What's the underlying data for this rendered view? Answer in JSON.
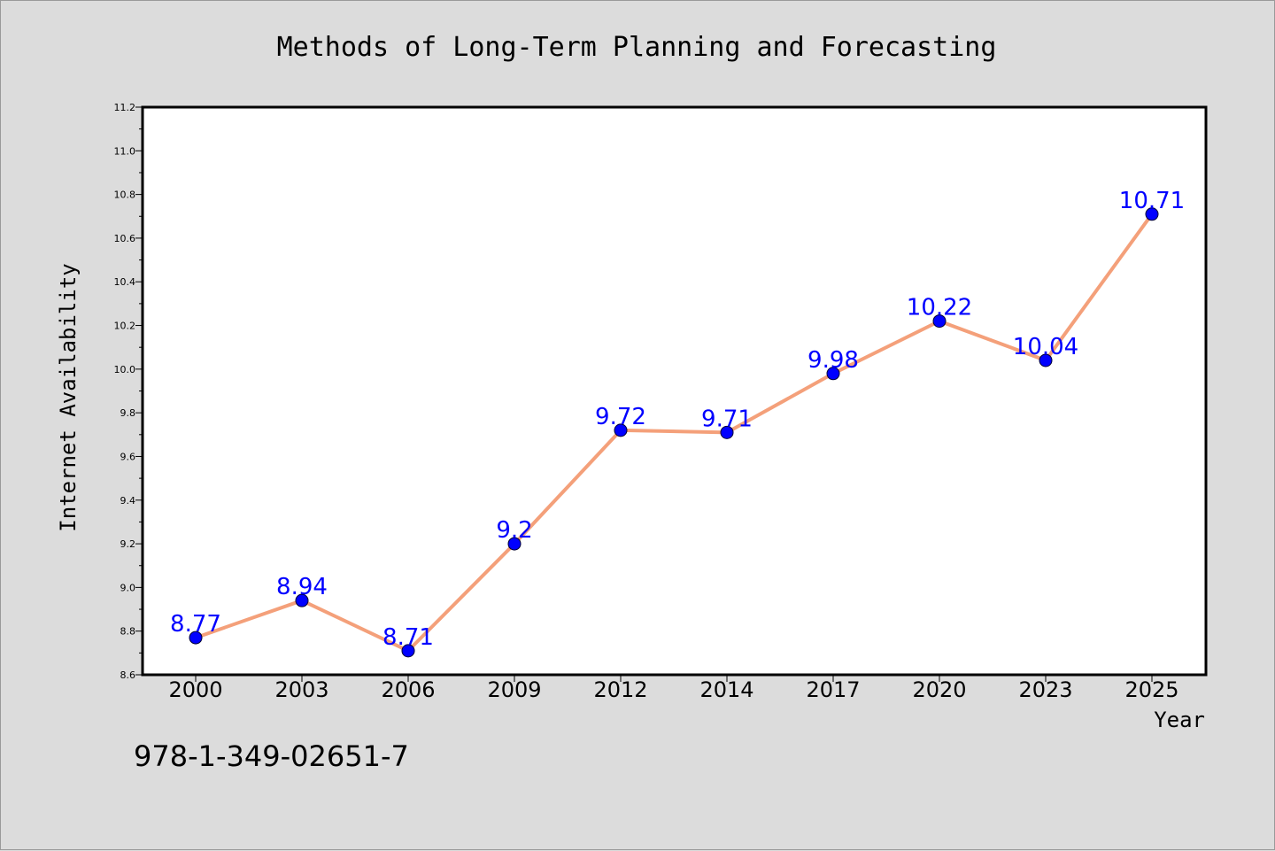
{
  "chart_data": {
    "type": "line",
    "title": "Methods of Long-Term Planning and Forecasting",
    "xlabel": "Year",
    "ylabel": "Internet Availability",
    "categories": [
      "2000",
      "2003",
      "2006",
      "2009",
      "2012",
      "2014",
      "2017",
      "2020",
      "2023",
      "2025"
    ],
    "series": [
      {
        "values": [
          8.77,
          8.94,
          8.71,
          9.2,
          9.72,
          9.71,
          9.98,
          10.22,
          10.04,
          10.71
        ],
        "labels": [
          "8.77",
          "8.94",
          "8.71",
          "9.2",
          "9.72",
          "9.71",
          "9.98",
          "10.22",
          "10.04",
          "10.71"
        ],
        "line_color": "#f4a07a",
        "marker_color": "#0000ff"
      }
    ],
    "ylim": [
      8.6,
      11.2
    ],
    "yticks": [
      "8.6",
      "8.8",
      "9.0",
      "9.2",
      "9.4",
      "9.6",
      "9.8",
      "10.0",
      "10.2",
      "10.4",
      "10.6",
      "10.8",
      "11.0",
      "11.2"
    ],
    "grid": false,
    "legend": "none"
  },
  "annotation": {
    "isbn": "978-1-349-02651-7"
  },
  "colors": {
    "background": "#dcdcdc",
    "plot_background": "#ffffff",
    "data_label": "#0000ff"
  }
}
